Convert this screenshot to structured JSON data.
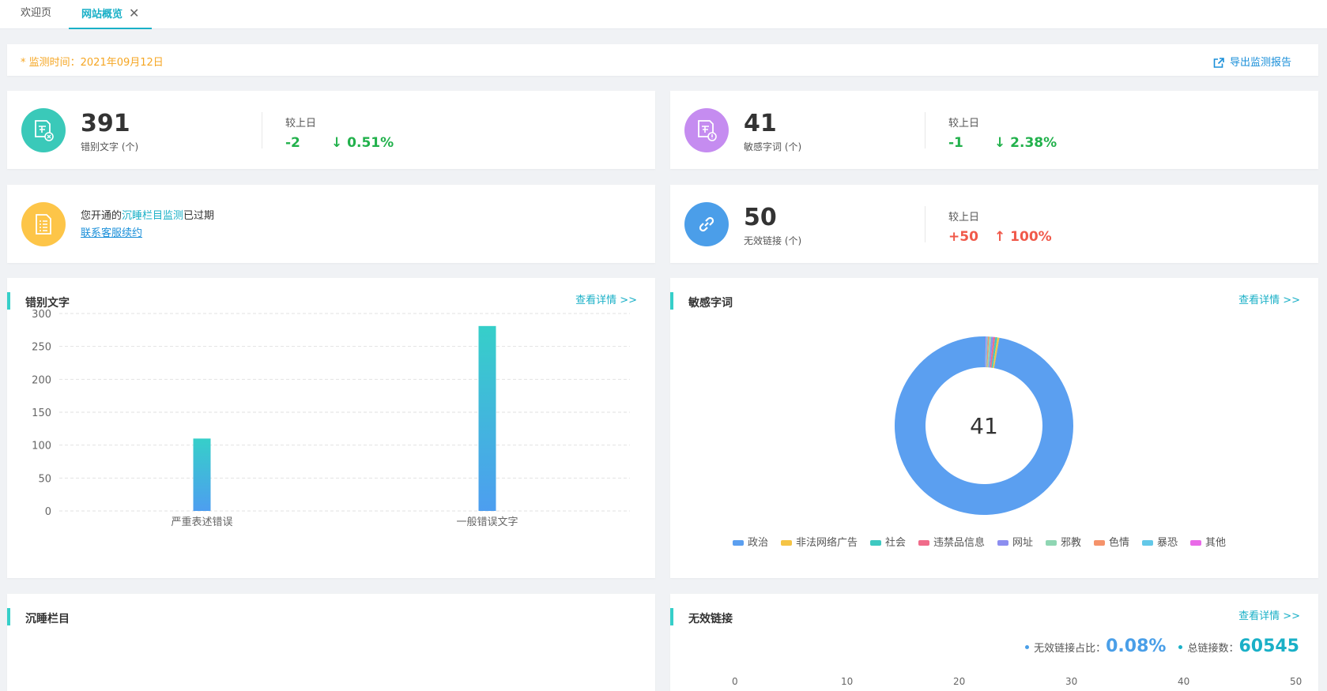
{
  "tabs": [
    {
      "label": "欢迎页"
    },
    {
      "label": "网站概览",
      "close": "✕"
    }
  ],
  "notice": {
    "monitor_time": "* 监测时间：2021年09月12日",
    "export": "导出监测报告"
  },
  "stats": {
    "typos": {
      "value": "391",
      "unit": "错别文字 (个)",
      "cmp_label": "较上日",
      "delta": "-2",
      "pct": "↓ 0.51%"
    },
    "sensitive": {
      "value": "41",
      "unit": "敏感字词 (个)",
      "cmp_label": "较上日",
      "delta": "-1",
      "pct": "↓ 2.38%"
    },
    "sleep": {
      "prefix": "您开通的",
      "highlight": "沉睡栏目监测",
      "suffix": "已过期",
      "link": "联系客服续约"
    },
    "links": {
      "value": "50",
      "unit": "无效链接 (个)",
      "cmp_label": "较上日",
      "delta": "+50",
      "pct": "↑ 100%"
    }
  },
  "panels": {
    "typos": {
      "title": "错别文字",
      "more": "查看详情 >>"
    },
    "sensitive": {
      "title": "敏感字词",
      "more": "查看详情 >>",
      "center": "41"
    },
    "sleep": {
      "title": "沉睡栏目"
    },
    "links": {
      "title": "无效链接",
      "more": "查看详情 >>",
      "ratio_label": "无效链接占比：",
      "ratio_value": "0.08%",
      "total_label": "总链接数：",
      "total_value": "60545",
      "axis_ticks": [
        "0",
        "10",
        "20",
        "30",
        "40",
        "50"
      ]
    }
  },
  "colors": {
    "accent": "#1ab0c7",
    "teal": "#36cfc9",
    "blue": "#4a9fe8",
    "green": "#22b14c",
    "red": "#f0594a",
    "orange": "#f5a623"
  },
  "chart_data": [
    {
      "type": "bar",
      "categories": [
        "严重表述错误",
        "一般错误文字"
      ],
      "values": [
        110,
        281
      ],
      "ylim": [
        0,
        300
      ],
      "yticks": [
        0,
        50,
        100,
        150,
        200,
        250,
        300
      ],
      "grid": true
    },
    {
      "type": "pie",
      "donut": true,
      "center_label": "41",
      "categories": [
        "政治",
        "非法网络广告",
        "社会",
        "违禁品信息",
        "网址",
        "邪教",
        "色情",
        "暴恐",
        "其他"
      ],
      "values": [
        40,
        0.15,
        0.15,
        0.15,
        0.15,
        0.15,
        0.1,
        0.1,
        0.05
      ],
      "colors": [
        "#5b9ff0",
        "#f5c445",
        "#3ec9c1",
        "#f06b8a",
        "#8c8ef0",
        "#8fd6b3",
        "#f5936b",
        "#63c8e8",
        "#e96ae8"
      ],
      "legend": "bottom"
    }
  ]
}
